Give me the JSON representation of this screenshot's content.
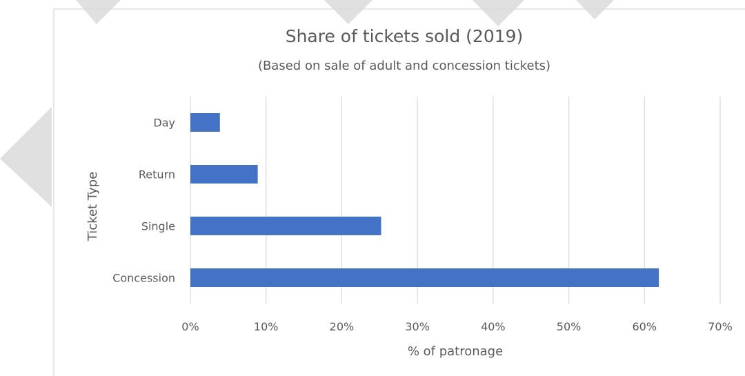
{
  "chart_data": {
    "type": "bar",
    "orientation": "horizontal",
    "title": "Share of tickets sold (2019)",
    "subtitle": "(Based on sale of adult and concession tickets)",
    "xlabel": "% of patronage",
    "ylabel": "Ticket Type",
    "categories": [
      "Day",
      "Return",
      "Single",
      "Concession"
    ],
    "values": [
      3.9,
      8.9,
      25.2,
      61.9
    ],
    "xlim": [
      0,
      70
    ],
    "x_ticks": [
      0,
      10,
      20,
      30,
      40,
      50,
      60,
      70
    ],
    "x_tick_labels": [
      "0%",
      "10%",
      "20%",
      "30%",
      "40%",
      "50%",
      "60%",
      "70%"
    ],
    "grid": true,
    "legend": "none",
    "bar_color": "#4472c4"
  }
}
